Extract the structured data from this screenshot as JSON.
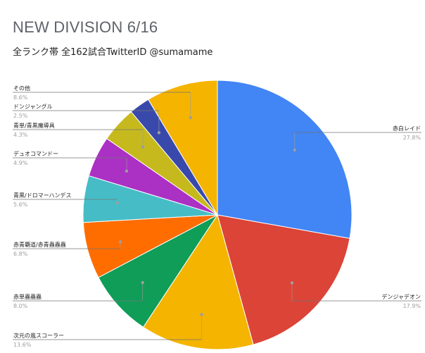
{
  "chart_data": {
    "type": "pie",
    "title": "NEW DIVISION 6/16",
    "subtitle": "全ランク帯 全162試合TwitterID @sumamame",
    "slices": [
      {
        "label": "赤白レイド",
        "value": 27.8,
        "value_label": "27.8%",
        "color": "#4285f4"
      },
      {
        "label": "デンジャデオン",
        "value": 17.9,
        "value_label": "17.9%",
        "color": "#db4437"
      },
      {
        "label": "次元の嵐スコーラー",
        "value": 13.6,
        "value_label": "13.6%",
        "color": "#f4b400"
      },
      {
        "label": "赤単蟲蟲蟲",
        "value": 8.0,
        "value_label": "8.0%",
        "color": "#0f9d58"
      },
      {
        "label": "赤青覇道/赤青蟲蟲蟲",
        "value": 6.8,
        "value_label": "6.8%",
        "color": "#ff6d01"
      },
      {
        "label": "青黒/ドロマーハンデス",
        "value": 5.6,
        "value_label": "5.6%",
        "color": "#46bdc6"
      },
      {
        "label": "デュオコマンドー",
        "value": 4.9,
        "value_label": "4.9%",
        "color": "#ab30c4"
      },
      {
        "label": "青単/青黒魔導具",
        "value": 4.3,
        "value_label": "4.3%",
        "color": "#c5b91e"
      },
      {
        "label": "ドンジャングル",
        "value": 2.5,
        "value_label": "2.5%",
        "color": "#3949ab"
      },
      {
        "label": "その他",
        "value": 8.6,
        "value_label": "8.6%",
        "color": "#f4b400"
      }
    ],
    "legend": "callout-labels"
  }
}
